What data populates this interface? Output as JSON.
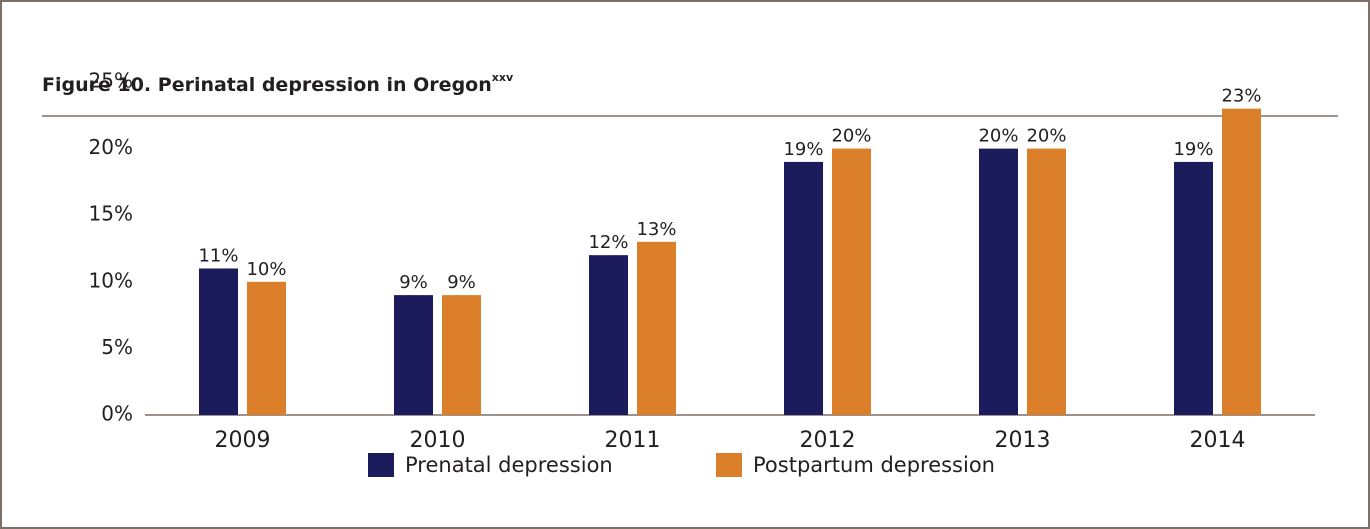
{
  "chart_data": {
    "type": "bar",
    "title": "Figure 10. Perinatal depression in Oregon",
    "title_note": "xxv",
    "categories": [
      "2009",
      "2010",
      "2011",
      "2012",
      "2013",
      "2014"
    ],
    "series": [
      {
        "name": "Prenatal depression",
        "color": "#1c1b5c",
        "values": [
          11,
          9,
          12,
          19,
          20,
          19
        ],
        "value_labels": [
          "11%",
          "9%",
          "12%",
          "19%",
          "20%",
          "19%"
        ]
      },
      {
        "name": "Postpartum depression",
        "color": "#dc7f2a",
        "values": [
          10,
          9,
          13,
          20,
          20,
          23
        ],
        "value_labels": [
          "10%",
          "9%",
          "13%",
          "20%",
          "20%",
          "23%"
        ]
      }
    ],
    "ylim": [
      0,
      25
    ],
    "yticks": [
      {
        "value": 0,
        "label": "0%"
      },
      {
        "value": 5,
        "label": "5%"
      },
      {
        "value": 10,
        "label": "10%"
      },
      {
        "value": 15,
        "label": "15%"
      },
      {
        "value": 20,
        "label": "20%"
      },
      {
        "value": 25,
        "label": "25%"
      }
    ],
    "grid": false,
    "legend": "bottom"
  }
}
